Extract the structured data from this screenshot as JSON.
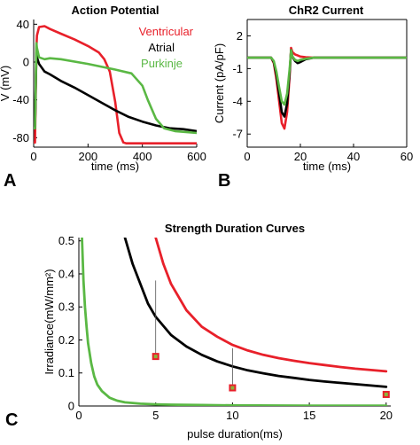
{
  "chart_data": [
    {
      "panel_letter": "A",
      "type": "line",
      "title": "Action Potential",
      "xlabel": "time (ms)",
      "ylabel": "V (mV)",
      "xlim": [
        0,
        600
      ],
      "ylim": [
        -90,
        45
      ],
      "xticks": [
        0,
        200,
        400,
        600
      ],
      "yticks": [
        40,
        0,
        -40,
        -80
      ],
      "grid": false,
      "legend_placement": "top-right",
      "series": [
        {
          "name": "Ventricular",
          "color": "#e8202a",
          "x": [
            0,
            5,
            10,
            12,
            20,
            40,
            60,
            100,
            150,
            200,
            240,
            260,
            280,
            300,
            315,
            330,
            340,
            600
          ],
          "y": [
            -85,
            -85,
            15,
            28,
            37,
            38,
            35,
            30,
            24,
            17,
            10,
            3,
            -10,
            -42,
            -75,
            -85,
            -86,
            -86
          ]
        },
        {
          "name": "Atrial",
          "color": "#000000",
          "x": [
            0,
            5,
            10,
            12,
            20,
            40,
            60,
            100,
            150,
            200,
            250,
            300,
            350,
            400,
            450,
            500,
            550,
            600
          ],
          "y": [
            -70,
            -70,
            10,
            5,
            -2,
            -10,
            -13,
            -20,
            -27,
            -35,
            -43,
            -51,
            -58,
            -63,
            -67,
            -70,
            -71,
            -73
          ]
        },
        {
          "name": "Purkinje",
          "color": "#5ab844",
          "x": [
            0,
            5,
            10,
            12,
            20,
            40,
            60,
            100,
            200,
            300,
            360,
            400,
            420,
            450,
            480,
            520,
            560,
            600
          ],
          "y": [
            -70,
            -70,
            20,
            15,
            5,
            3,
            4,
            3,
            -2,
            -8,
            -12,
            -25,
            -40,
            -60,
            -70,
            -73,
            -74,
            -75
          ]
        }
      ]
    },
    {
      "panel_letter": "B",
      "type": "line",
      "title": "ChR2 Current",
      "xlabel": "time (ms)",
      "ylabel": "Current (pA/pF)",
      "xlim": [
        0,
        60
      ],
      "ylim": [
        -8.2,
        3.5
      ],
      "xticks": [
        0,
        20,
        40,
        60
      ],
      "yticks": [
        2,
        -1,
        -4,
        -7
      ],
      "grid": false,
      "series": [
        {
          "color": "#e8202a",
          "x": [
            0,
            9,
            10,
            11,
            12,
            13,
            14,
            15,
            16,
            16.5,
            17,
            18,
            19,
            20,
            22,
            25,
            60
          ],
          "y": [
            0,
            0,
            -0.5,
            -2,
            -4,
            -6,
            -6.5,
            -5,
            -1.5,
            0.9,
            0.5,
            0.3,
            0.2,
            0.1,
            0.05,
            0,
            0
          ]
        },
        {
          "color": "#000000",
          "x": [
            0,
            9,
            10,
            11,
            12,
            13,
            14,
            15,
            16,
            16.5,
            17,
            18,
            19,
            20,
            22,
            25,
            60
          ],
          "y": [
            0,
            0,
            -0.4,
            -1.6,
            -3.3,
            -5,
            -5.4,
            -4.2,
            -1.2,
            0.7,
            0.1,
            -0.3,
            -0.5,
            -0.4,
            -0.15,
            0,
            0
          ]
        },
        {
          "color": "#5ab844",
          "x": [
            0,
            9,
            10,
            11,
            12,
            13,
            14,
            15,
            16,
            16.5,
            17,
            18,
            19,
            20,
            22,
            25,
            60
          ],
          "y": [
            0,
            0,
            -0.3,
            -1.3,
            -2.7,
            -4,
            -4.3,
            -3.3,
            -0.9,
            0.7,
            0.1,
            -0.2,
            -0.3,
            -0.2,
            -0.1,
            0,
            0
          ]
        }
      ]
    },
    {
      "panel_letter": "C",
      "type": "line",
      "title": "Strength Duration Curves",
      "xlabel": "pulse duration(ms)",
      "ylabel": "Irradiance(mW/mm²)",
      "xlim": [
        0,
        20.3
      ],
      "ylim": [
        0,
        0.51
      ],
      "xticks": [
        0,
        5,
        10,
        15,
        20
      ],
      "yticks": [
        0,
        0.1,
        0.2,
        0.3,
        0.4,
        0.5
      ],
      "grid": false,
      "series": [
        {
          "color": "#e8202a",
          "x": [
            5,
            5.5,
            6,
            7,
            8,
            9,
            10,
            11,
            12,
            13,
            14,
            15,
            16,
            17,
            18,
            19,
            20
          ],
          "y": [
            0.51,
            0.43,
            0.37,
            0.29,
            0.24,
            0.21,
            0.185,
            0.168,
            0.155,
            0.145,
            0.137,
            0.13,
            0.124,
            0.118,
            0.113,
            0.109,
            0.105
          ]
        },
        {
          "color": "#000000",
          "x": [
            3,
            3.5,
            4,
            4.5,
            5,
            6,
            7,
            8,
            9,
            10,
            11,
            12,
            13,
            14,
            15,
            16,
            17,
            18,
            19,
            20
          ],
          "y": [
            0.51,
            0.43,
            0.37,
            0.31,
            0.27,
            0.215,
            0.18,
            0.155,
            0.135,
            0.12,
            0.108,
            0.099,
            0.091,
            0.085,
            0.079,
            0.074,
            0.07,
            0.066,
            0.062,
            0.058
          ]
        },
        {
          "color": "#5ab844",
          "x": [
            0.2,
            0.3,
            0.4,
            0.5,
            0.6,
            0.8,
            1,
            1.2,
            1.5,
            2,
            2.5,
            3,
            4,
            5,
            6,
            8,
            10,
            15,
            20
          ],
          "y": [
            0.51,
            0.38,
            0.3,
            0.24,
            0.19,
            0.13,
            0.09,
            0.065,
            0.045,
            0.025,
            0.016,
            0.011,
            0.007,
            0.005,
            0.004,
            0.003,
            0.002,
            0.001,
            0.001
          ]
        }
      ],
      "markers": [
        {
          "x": 5,
          "y": 0.15,
          "line_from": 0.38
        },
        {
          "x": 10,
          "y": 0.055,
          "line_from": 0.175
        },
        {
          "x": 20,
          "y": 0.035,
          "line_from": 0.04
        }
      ],
      "marker_fill": "#e8202a",
      "marker_inner": "#8db33a"
    }
  ]
}
